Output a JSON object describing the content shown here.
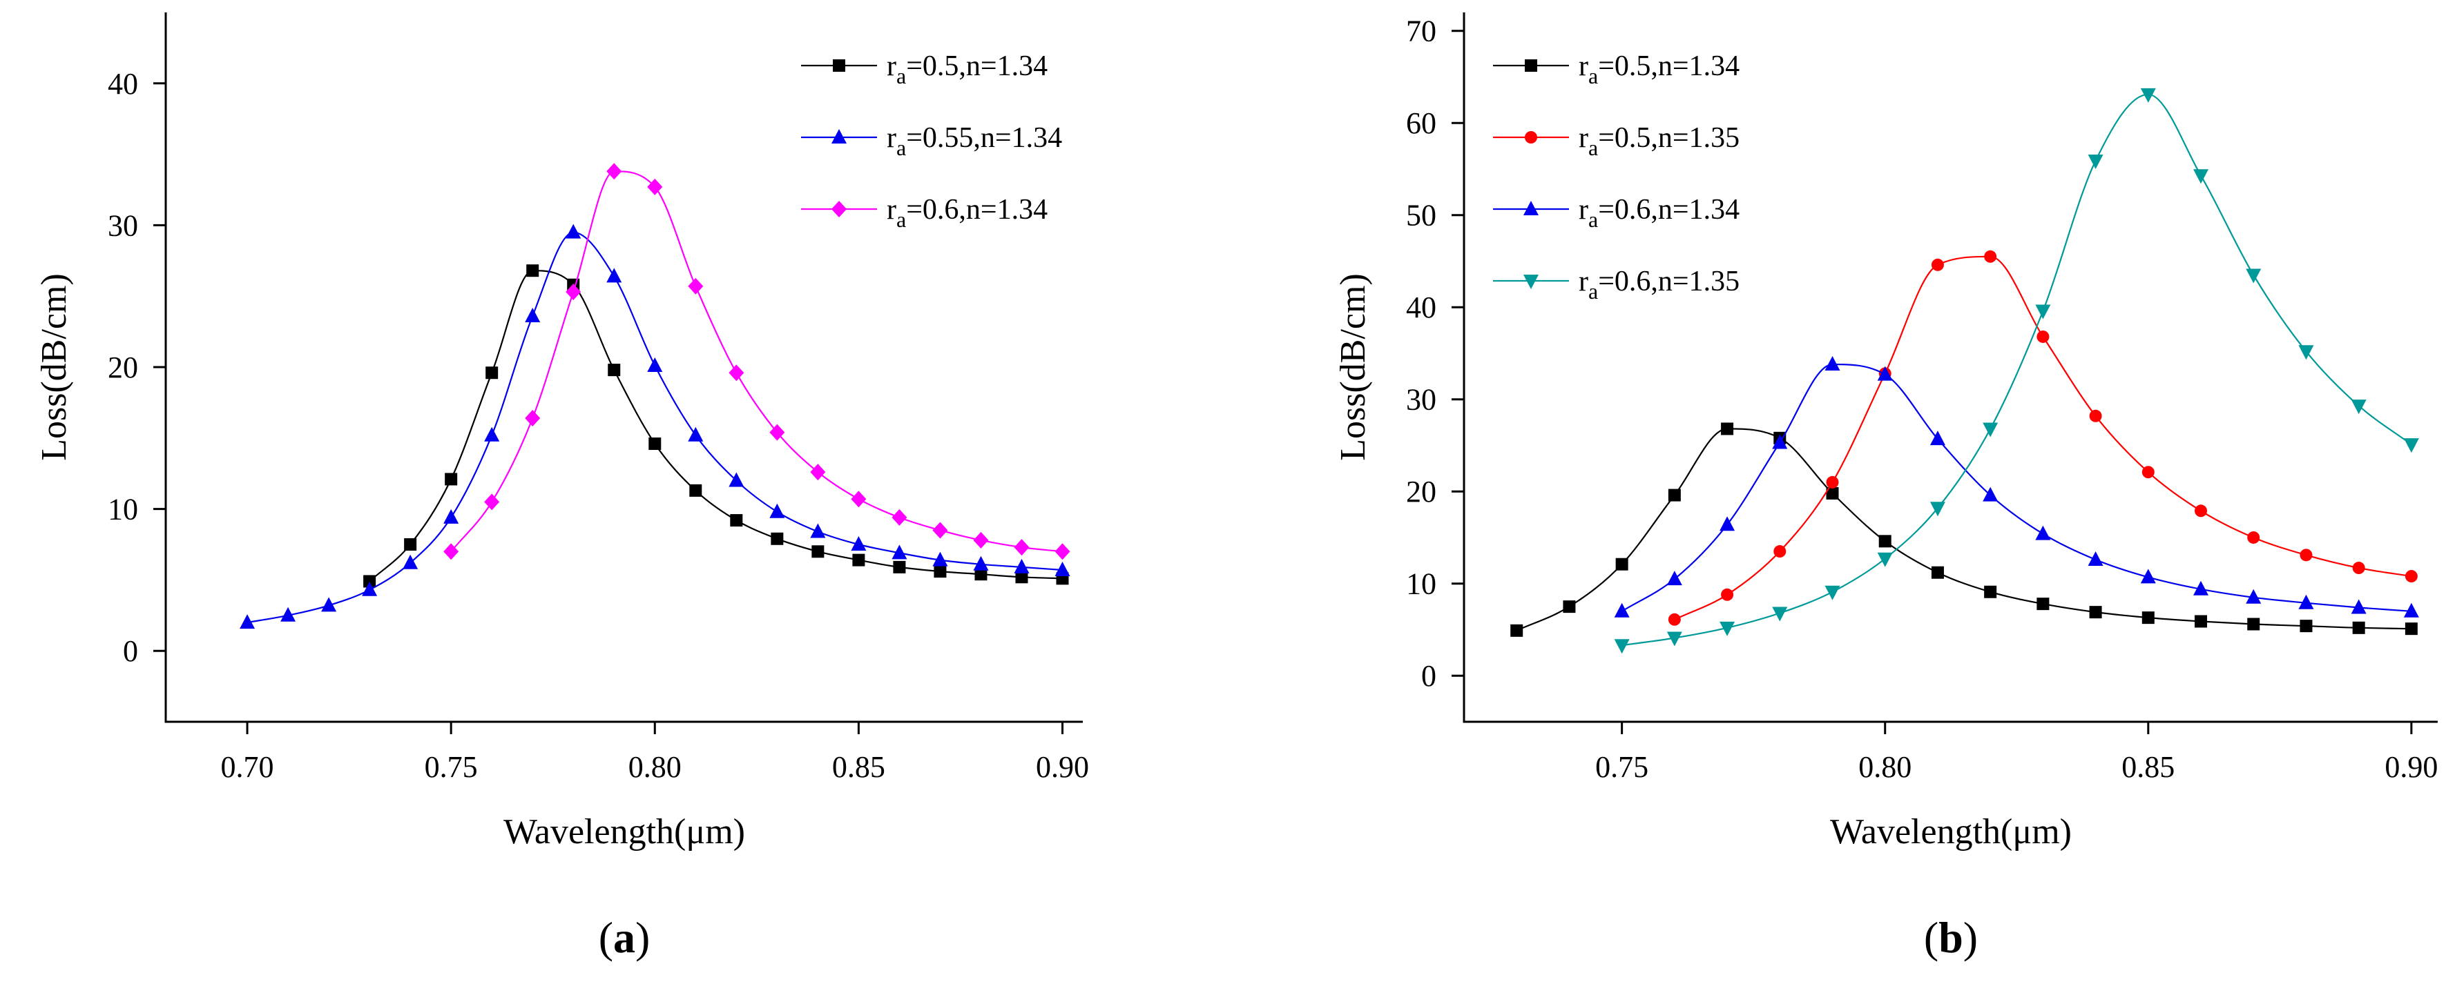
{
  "chart_data": [
    {
      "type": "line",
      "id": "a",
      "caption_open": "(",
      "caption_letter": "a",
      "caption_close": ")",
      "xlabel": "Wavelength(μm)",
      "ylabel": "Loss(dB/cm)",
      "xlim": [
        0.68,
        0.905
      ],
      "ylim": [
        -5,
        45
      ],
      "xticks": [
        0.7,
        0.75,
        0.8,
        0.85,
        0.9
      ],
      "xtick_labels": [
        "0.70",
        "0.75",
        "0.80",
        "0.85",
        "0.90"
      ],
      "yticks": [
        0,
        10,
        20,
        30,
        40
      ],
      "ytick_labels": [
        "0",
        "10",
        "20",
        "30",
        "40"
      ],
      "legend_position": "top-right",
      "series": [
        {
          "name": "r_a=0.5,n=1.34",
          "label_base": "r",
          "label_sub": "a",
          "label_rest": "=0.5,n=1.34",
          "color": "#000000",
          "marker": "square",
          "x": [
            0.73,
            0.74,
            0.75,
            0.76,
            0.77,
            0.78,
            0.79,
            0.8,
            0.81,
            0.82,
            0.83,
            0.84,
            0.85,
            0.86,
            0.87,
            0.88,
            0.89,
            0.9
          ],
          "y": [
            4.9,
            7.5,
            12.1,
            19.6,
            26.8,
            25.8,
            19.8,
            14.6,
            11.3,
            9.2,
            7.9,
            7.0,
            6.4,
            5.9,
            5.6,
            5.4,
            5.2,
            5.1
          ]
        },
        {
          "name": "r_a=0.55,n=1.34",
          "label_base": "r",
          "label_sub": "a",
          "label_rest": "=0.55,n=1.34",
          "color": "#0000ee",
          "marker": "triangle-up",
          "x": [
            0.7,
            0.71,
            0.72,
            0.73,
            0.74,
            0.75,
            0.76,
            0.77,
            0.78,
            0.79,
            0.8,
            0.81,
            0.82,
            0.83,
            0.84,
            0.85,
            0.86,
            0.87,
            0.88,
            0.89,
            0.9
          ],
          "y": [
            2.0,
            2.5,
            3.2,
            4.3,
            6.2,
            9.4,
            15.2,
            23.6,
            29.5,
            26.4,
            20.1,
            15.2,
            12.0,
            9.8,
            8.4,
            7.5,
            6.9,
            6.4,
            6.1,
            5.9,
            5.7
          ]
        },
        {
          "name": "r_a=0.6,n=1.34",
          "label_base": "r",
          "label_sub": "a",
          "label_rest": "=0.6,n=1.34",
          "color": "#ff00ff",
          "marker": "diamond",
          "x": [
            0.75,
            0.76,
            0.77,
            0.78,
            0.79,
            0.8,
            0.81,
            0.82,
            0.83,
            0.84,
            0.85,
            0.86,
            0.87,
            0.88,
            0.89,
            0.9
          ],
          "y": [
            7.0,
            10.5,
            16.4,
            25.3,
            33.8,
            32.7,
            25.7,
            19.6,
            15.4,
            12.6,
            10.7,
            9.4,
            8.5,
            7.8,
            7.3,
            7.0
          ]
        }
      ]
    },
    {
      "type": "line",
      "id": "b",
      "caption_open": "(",
      "caption_letter": "b",
      "caption_close": ")",
      "xlabel": "Wavelength(μm)",
      "ylabel": "Loss(dB/cm)",
      "xlim": [
        0.72,
        0.905
      ],
      "ylim": [
        -5,
        72
      ],
      "xticks": [
        0.75,
        0.8,
        0.85,
        0.9
      ],
      "xtick_labels": [
        "0.75",
        "0.80",
        "0.85",
        "0.90"
      ],
      "yticks": [
        0,
        10,
        20,
        30,
        40,
        50,
        60,
        70
      ],
      "ytick_labels": [
        "0",
        "10",
        "20",
        "30",
        "40",
        "50",
        "60",
        "70"
      ],
      "legend_position": "top-left",
      "series": [
        {
          "name": "r_a=0.5,n=1.34",
          "label_base": "r",
          "label_sub": "a",
          "label_rest": "=0.5,n=1.34",
          "color": "#000000",
          "marker": "square",
          "x": [
            0.73,
            0.74,
            0.75,
            0.76,
            0.77,
            0.78,
            0.79,
            0.8,
            0.81,
            0.82,
            0.83,
            0.84,
            0.85,
            0.86,
            0.87,
            0.88,
            0.89,
            0.9
          ],
          "y": [
            4.9,
            7.5,
            12.1,
            19.6,
            26.8,
            25.8,
            19.8,
            14.6,
            11.2,
            9.1,
            7.8,
            6.9,
            6.3,
            5.9,
            5.6,
            5.4,
            5.2,
            5.1
          ]
        },
        {
          "name": "r_a=0.5,n=1.35",
          "label_base": "r",
          "label_sub": "a",
          "label_rest": "=0.5,n=1.35",
          "color": "#ff0000",
          "marker": "circle",
          "x": [
            0.76,
            0.77,
            0.78,
            0.79,
            0.8,
            0.81,
            0.82,
            0.83,
            0.84,
            0.85,
            0.86,
            0.87,
            0.88,
            0.89,
            0.9
          ],
          "y": [
            6.1,
            8.8,
            13.5,
            21.0,
            32.8,
            44.6,
            45.5,
            36.8,
            28.2,
            22.1,
            17.9,
            15.0,
            13.1,
            11.7,
            10.8
          ]
        },
        {
          "name": "r_a=0.6,n=1.34",
          "label_base": "r",
          "label_sub": "a",
          "label_rest": "=0.6,n=1.34",
          "color": "#0000ee",
          "marker": "triangle-up",
          "x": [
            0.75,
            0.76,
            0.77,
            0.78,
            0.79,
            0.8,
            0.81,
            0.82,
            0.83,
            0.84,
            0.85,
            0.86,
            0.87,
            0.88,
            0.89,
            0.9
          ],
          "y": [
            7.0,
            10.5,
            16.4,
            25.3,
            33.8,
            32.7,
            25.7,
            19.6,
            15.4,
            12.6,
            10.7,
            9.4,
            8.5,
            7.9,
            7.4,
            7.0
          ]
        },
        {
          "name": "r_a=0.6,n=1.35",
          "label_base": "r",
          "label_sub": "a",
          "label_rest": "=0.6,n=1.35",
          "color": "#009999",
          "marker": "triangle-down",
          "x": [
            0.75,
            0.76,
            0.77,
            0.78,
            0.79,
            0.8,
            0.81,
            0.82,
            0.83,
            0.84,
            0.85,
            0.86,
            0.87,
            0.88,
            0.89,
            0.9
          ],
          "y": [
            3.3,
            4.1,
            5.2,
            6.8,
            9.1,
            12.7,
            18.2,
            26.8,
            39.6,
            55.9,
            63.1,
            54.3,
            43.5,
            35.2,
            29.3,
            25.1
          ]
        }
      ]
    }
  ]
}
